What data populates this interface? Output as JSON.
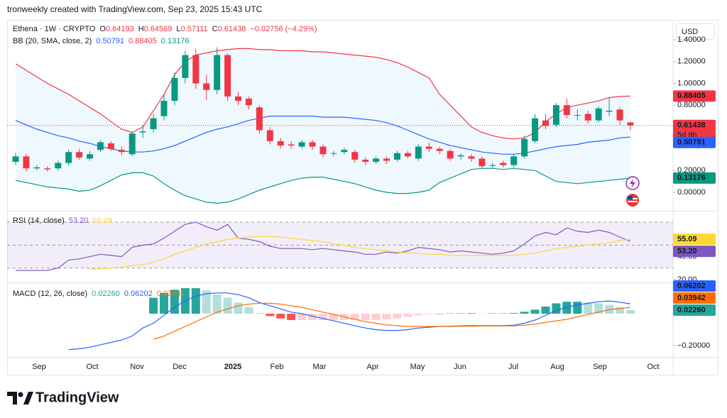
{
  "watermark": "tronweekly created with TradingView.com, Sep 23, 2025 15:43 UTC",
  "currency": "USD",
  "brand": "TradingView",
  "time_axis": [
    "Sep",
    "Oct",
    "Nov",
    "Dec",
    "2025",
    "Feb",
    "Mar",
    "Apr",
    "May",
    "Jun",
    "Jul",
    "Aug",
    "Sep",
    "Oct"
  ],
  "chart_data": [
    {
      "type": "candlestick",
      "title": "Ethena · 1W · CRYPTO",
      "ohlc_labels": [
        "O",
        "H",
        "L",
        "C"
      ],
      "change": "−0.02756 (−4.29%)",
      "countdown": "5d 9h",
      "indicator": "BB (20, SMA, close, 2)",
      "up_color": "#089981",
      "down_color": "#f23645",
      "open": [
        0.28,
        0.33,
        0.22,
        0.22,
        0.22,
        0.27,
        0.37,
        0.31,
        0.39,
        0.45,
        0.39,
        0.35,
        0.55,
        0.58,
        0.7,
        0.84,
        1.05,
        1.26,
        1.0,
        0.94,
        1.26,
        0.88,
        0.86,
        0.78,
        0.57,
        0.47,
        0.44,
        0.42,
        0.46,
        0.42,
        0.36,
        0.37,
        0.37,
        0.3,
        0.28,
        0.31,
        0.3,
        0.36,
        0.31,
        0.42,
        0.4,
        0.38,
        0.33,
        0.33,
        0.31,
        0.25,
        0.27,
        0.25,
        0.33,
        0.47,
        0.66,
        0.62,
        0.8,
        0.71,
        0.72,
        0.66,
        0.74,
        0.76,
        0.64193
      ],
      "high": [
        0.36,
        0.35,
        0.25,
        0.24,
        0.29,
        0.39,
        0.4,
        0.38,
        0.48,
        0.47,
        0.42,
        0.56,
        0.62,
        0.72,
        0.9,
        1.1,
        1.3,
        1.32,
        1.08,
        1.33,
        1.28,
        0.92,
        0.88,
        0.8,
        0.6,
        0.5,
        0.47,
        0.48,
        0.48,
        0.44,
        0.38,
        0.41,
        0.39,
        0.32,
        0.33,
        0.33,
        0.38,
        0.38,
        0.44,
        0.46,
        0.42,
        0.4,
        0.36,
        0.35,
        0.33,
        0.27,
        0.29,
        0.35,
        0.52,
        0.72,
        0.72,
        0.82,
        0.86,
        0.76,
        0.75,
        0.79,
        0.87,
        0.78,
        0.64569
      ],
      "low": [
        0.25,
        0.19,
        0.2,
        0.19,
        0.2,
        0.25,
        0.3,
        0.29,
        0.37,
        0.38,
        0.34,
        0.33,
        0.5,
        0.55,
        0.66,
        0.8,
        1.0,
        0.95,
        0.85,
        0.9,
        0.84,
        0.8,
        0.76,
        0.54,
        0.44,
        0.4,
        0.4,
        0.4,
        0.39,
        0.32,
        0.33,
        0.35,
        0.27,
        0.25,
        0.26,
        0.26,
        0.28,
        0.31,
        0.29,
        0.37,
        0.35,
        0.29,
        0.3,
        0.28,
        0.22,
        0.22,
        0.23,
        0.23,
        0.31,
        0.45,
        0.58,
        0.6,
        0.68,
        0.66,
        0.63,
        0.64,
        0.7,
        0.62,
        0.57111
      ],
      "close": [
        0.33,
        0.22,
        0.23,
        0.21,
        0.27,
        0.37,
        0.32,
        0.35,
        0.46,
        0.4,
        0.37,
        0.54,
        0.56,
        0.68,
        0.84,
        1.05,
        1.26,
        1.0,
        0.94,
        1.26,
        0.88,
        0.84,
        0.8,
        0.57,
        0.47,
        0.43,
        0.43,
        0.46,
        0.42,
        0.35,
        0.36,
        0.39,
        0.3,
        0.28,
        0.31,
        0.29,
        0.36,
        0.33,
        0.42,
        0.4,
        0.38,
        0.31,
        0.34,
        0.31,
        0.24,
        0.25,
        0.25,
        0.33,
        0.49,
        0.68,
        0.61,
        0.8,
        0.71,
        0.71,
        0.66,
        0.77,
        0.75,
        0.66,
        0.61438
      ],
      "series": [
        {
          "color": "#2962ff",
          "legend_value": 0.50791,
          "values": [
            0.66,
            0.62,
            0.58,
            0.55,
            0.52,
            0.5,
            0.47,
            0.45,
            0.42,
            0.4,
            0.38,
            0.37,
            0.37,
            0.38,
            0.4,
            0.43,
            0.47,
            0.51,
            0.55,
            0.58,
            0.6,
            0.63,
            0.66,
            0.68,
            0.7,
            0.7,
            0.7,
            0.7,
            0.7,
            0.69,
            0.69,
            0.69,
            0.68,
            0.67,
            0.66,
            0.64,
            0.61,
            0.57,
            0.53,
            0.49,
            0.46,
            0.43,
            0.41,
            0.39,
            0.37,
            0.36,
            0.35,
            0.35,
            0.36,
            0.38,
            0.4,
            0.42,
            0.43,
            0.44,
            0.46,
            0.47,
            0.48,
            0.5,
            0.50791
          ]
        },
        {
          "color": "#f23645",
          "legend_value": 0.88405,
          "values": [
            1.18,
            1.12,
            1.06,
            1.0,
            0.95,
            0.9,
            0.84,
            0.78,
            0.72,
            0.65,
            0.58,
            0.55,
            0.6,
            0.75,
            0.9,
            1.08,
            1.2,
            1.26,
            1.28,
            1.3,
            1.31,
            1.32,
            1.32,
            1.31,
            1.31,
            1.3,
            1.3,
            1.3,
            1.29,
            1.29,
            1.28,
            1.27,
            1.26,
            1.25,
            1.24,
            1.22,
            1.19,
            1.15,
            1.1,
            1.05,
            0.9,
            0.8,
            0.7,
            0.6,
            0.55,
            0.52,
            0.5,
            0.49,
            0.5,
            0.55,
            0.65,
            0.72,
            0.78,
            0.8,
            0.82,
            0.84,
            0.87,
            0.88,
            0.88405
          ]
        },
        {
          "color": "#089981",
          "legend_value": 0.13176,
          "values": [
            0.11,
            0.09,
            0.07,
            0.05,
            0.04,
            0.03,
            0.01,
            0.02,
            0.06,
            0.11,
            0.16,
            0.18,
            0.18,
            0.15,
            0.08,
            0.02,
            -0.03,
            -0.06,
            -0.09,
            -0.1,
            -0.09,
            -0.06,
            -0.02,
            0.02,
            0.05,
            0.08,
            0.11,
            0.13,
            0.14,
            0.14,
            0.12,
            0.1,
            0.08,
            0.05,
            0.02,
            0.0,
            -0.01,
            -0.01,
            0.0,
            0.02,
            0.09,
            0.13,
            0.17,
            0.21,
            0.22,
            0.22,
            0.21,
            0.22,
            0.21,
            0.2,
            0.15,
            0.1,
            0.09,
            0.08,
            0.09,
            0.1,
            0.11,
            0.12,
            0.13176
          ]
        }
      ],
      "band_fill": "rgba(33,150,243,0.07)",
      "ylim": [
        -0.156,
        1.57
      ],
      "yticks": [
        {
          "value": 0,
          "label": "0.00000"
        },
        {
          "value": 0.2,
          "label": "0.20000"
        },
        {
          "value": 0.8,
          "label": "0.80000"
        },
        {
          "value": 1,
          "label": "1.00000"
        },
        {
          "value": 1.2,
          "label": "1.20000"
        },
        {
          "value": 1.4,
          "label": "1.40000"
        }
      ]
    },
    {
      "type": "line",
      "title": "RSI (14, close)",
      "levels": [
        70,
        50,
        30
      ],
      "level_fill": "rgba(126,87,194,0.1)",
      "series": [
        {
          "color": "#7e57c2",
          "legend_value": {
            "value": 53.2,
            "label": "53.20"
          },
          "values": [
            28,
            28,
            28,
            28,
            30,
            37,
            38,
            40,
            42,
            41,
            40,
            48,
            50,
            51,
            56,
            62,
            68,
            70,
            66,
            63,
            68,
            56,
            55,
            53,
            49,
            47,
            47,
            47,
            46,
            47,
            46,
            45,
            44,
            42,
            42,
            44,
            43,
            45,
            48,
            47,
            46,
            44,
            45,
            44,
            43,
            42,
            43,
            45,
            51,
            58,
            61,
            59,
            65,
            62,
            61,
            63,
            61,
            57,
            53.2
          ]
        },
        {
          "color": "#fdd835",
          "legend_value": 55.09,
          "values": [
            null,
            null,
            null,
            null,
            null,
            null,
            null,
            29,
            29.5,
            30,
            31,
            32,
            33,
            35,
            38,
            42,
            45,
            48,
            51,
            53,
            55,
            56,
            57,
            57.5,
            57.5,
            57,
            56,
            55,
            54,
            53,
            51,
            50,
            48,
            47,
            46,
            45,
            44,
            43,
            43,
            42,
            42,
            41,
            41,
            41,
            41,
            41,
            41,
            41,
            42,
            43,
            45,
            47,
            48,
            49,
            50,
            51,
            52,
            54,
            55.09
          ]
        }
      ],
      "ylim": [
        18.75,
        78
      ],
      "yticks": [
        {
          "value": 20,
          "label": "20.00"
        },
        {
          "value": 40,
          "label": "40.00"
        }
      ]
    },
    {
      "type": "macd",
      "title": "MACD (12, 26, close)",
      "histogram": {
        "colors": [
          "#26a69a",
          "#b2dfdb",
          "#ffcdd2",
          "#ff5252"
        ],
        "legend_value": {
          "value": 0.0226,
          "label": "0.02260"
        },
        "values": [
          null,
          null,
          null,
          null,
          null,
          null,
          null,
          null,
          null,
          null,
          null,
          null,
          null,
          0.1,
          0.13,
          0.15,
          0.16,
          0.16,
          0.145,
          0.12,
          0.1,
          0.07,
          0.04,
          0.005,
          -0.015,
          -0.03,
          -0.04,
          -0.04,
          -0.04,
          -0.04,
          -0.04,
          -0.04,
          -0.04,
          -0.04,
          -0.04,
          -0.035,
          -0.03,
          -0.02,
          -0.01,
          -0.005,
          0.0,
          0.002,
          0.002,
          0.003,
          0.002,
          0.002,
          0.002,
          0.004,
          0.012,
          0.025,
          0.045,
          0.065,
          0.075,
          0.075,
          0.07,
          0.065,
          0.055,
          0.039,
          0.0226
        ]
      },
      "series": [
        {
          "color": "#2962ff",
          "legend_value": 0.06202,
          "values": [
            null,
            null,
            null,
            null,
            null,
            -0.225,
            -0.22,
            -0.21,
            -0.195,
            -0.18,
            -0.165,
            -0.14,
            -0.09,
            -0.06,
            -0.01,
            0.04,
            0.08,
            0.11,
            0.125,
            0.13,
            0.13,
            0.12,
            0.1,
            0.07,
            0.05,
            0.03,
            0.01,
            0.0,
            -0.015,
            -0.03,
            -0.045,
            -0.06,
            -0.075,
            -0.09,
            -0.1,
            -0.105,
            -0.105,
            -0.1,
            -0.09,
            -0.085,
            -0.08,
            -0.078,
            -0.076,
            -0.075,
            -0.075,
            -0.075,
            -0.075,
            -0.072,
            -0.06,
            -0.04,
            -0.01,
            0.02,
            0.04,
            0.055,
            0.065,
            0.075,
            0.08,
            0.072,
            0.06202
          ]
        },
        {
          "color": "#ff6d00",
          "legend_value": 0.03942,
          "values": [
            null,
            null,
            null,
            null,
            null,
            null,
            null,
            null,
            null,
            null,
            null,
            null,
            null,
            -0.16,
            -0.14,
            -0.11,
            -0.08,
            -0.05,
            -0.02,
            0.01,
            0.03,
            0.05,
            0.06,
            0.065,
            0.065,
            0.06,
            0.05,
            0.04,
            0.025,
            0.01,
            -0.005,
            -0.02,
            -0.035,
            -0.05,
            -0.06,
            -0.07,
            -0.075,
            -0.08,
            -0.08,
            -0.08,
            -0.08,
            -0.08,
            -0.078,
            -0.078,
            -0.077,
            -0.077,
            -0.077,
            -0.076,
            -0.072,
            -0.065,
            -0.055,
            -0.045,
            -0.035,
            -0.02,
            -0.005,
            0.01,
            0.025,
            0.033,
            0.03942
          ]
        }
      ],
      "ylim": [
        -0.258,
        0.187
      ],
      "yticks": [
        {
          "value": -0.2,
          "label": "−0.20000"
        }
      ]
    }
  ]
}
